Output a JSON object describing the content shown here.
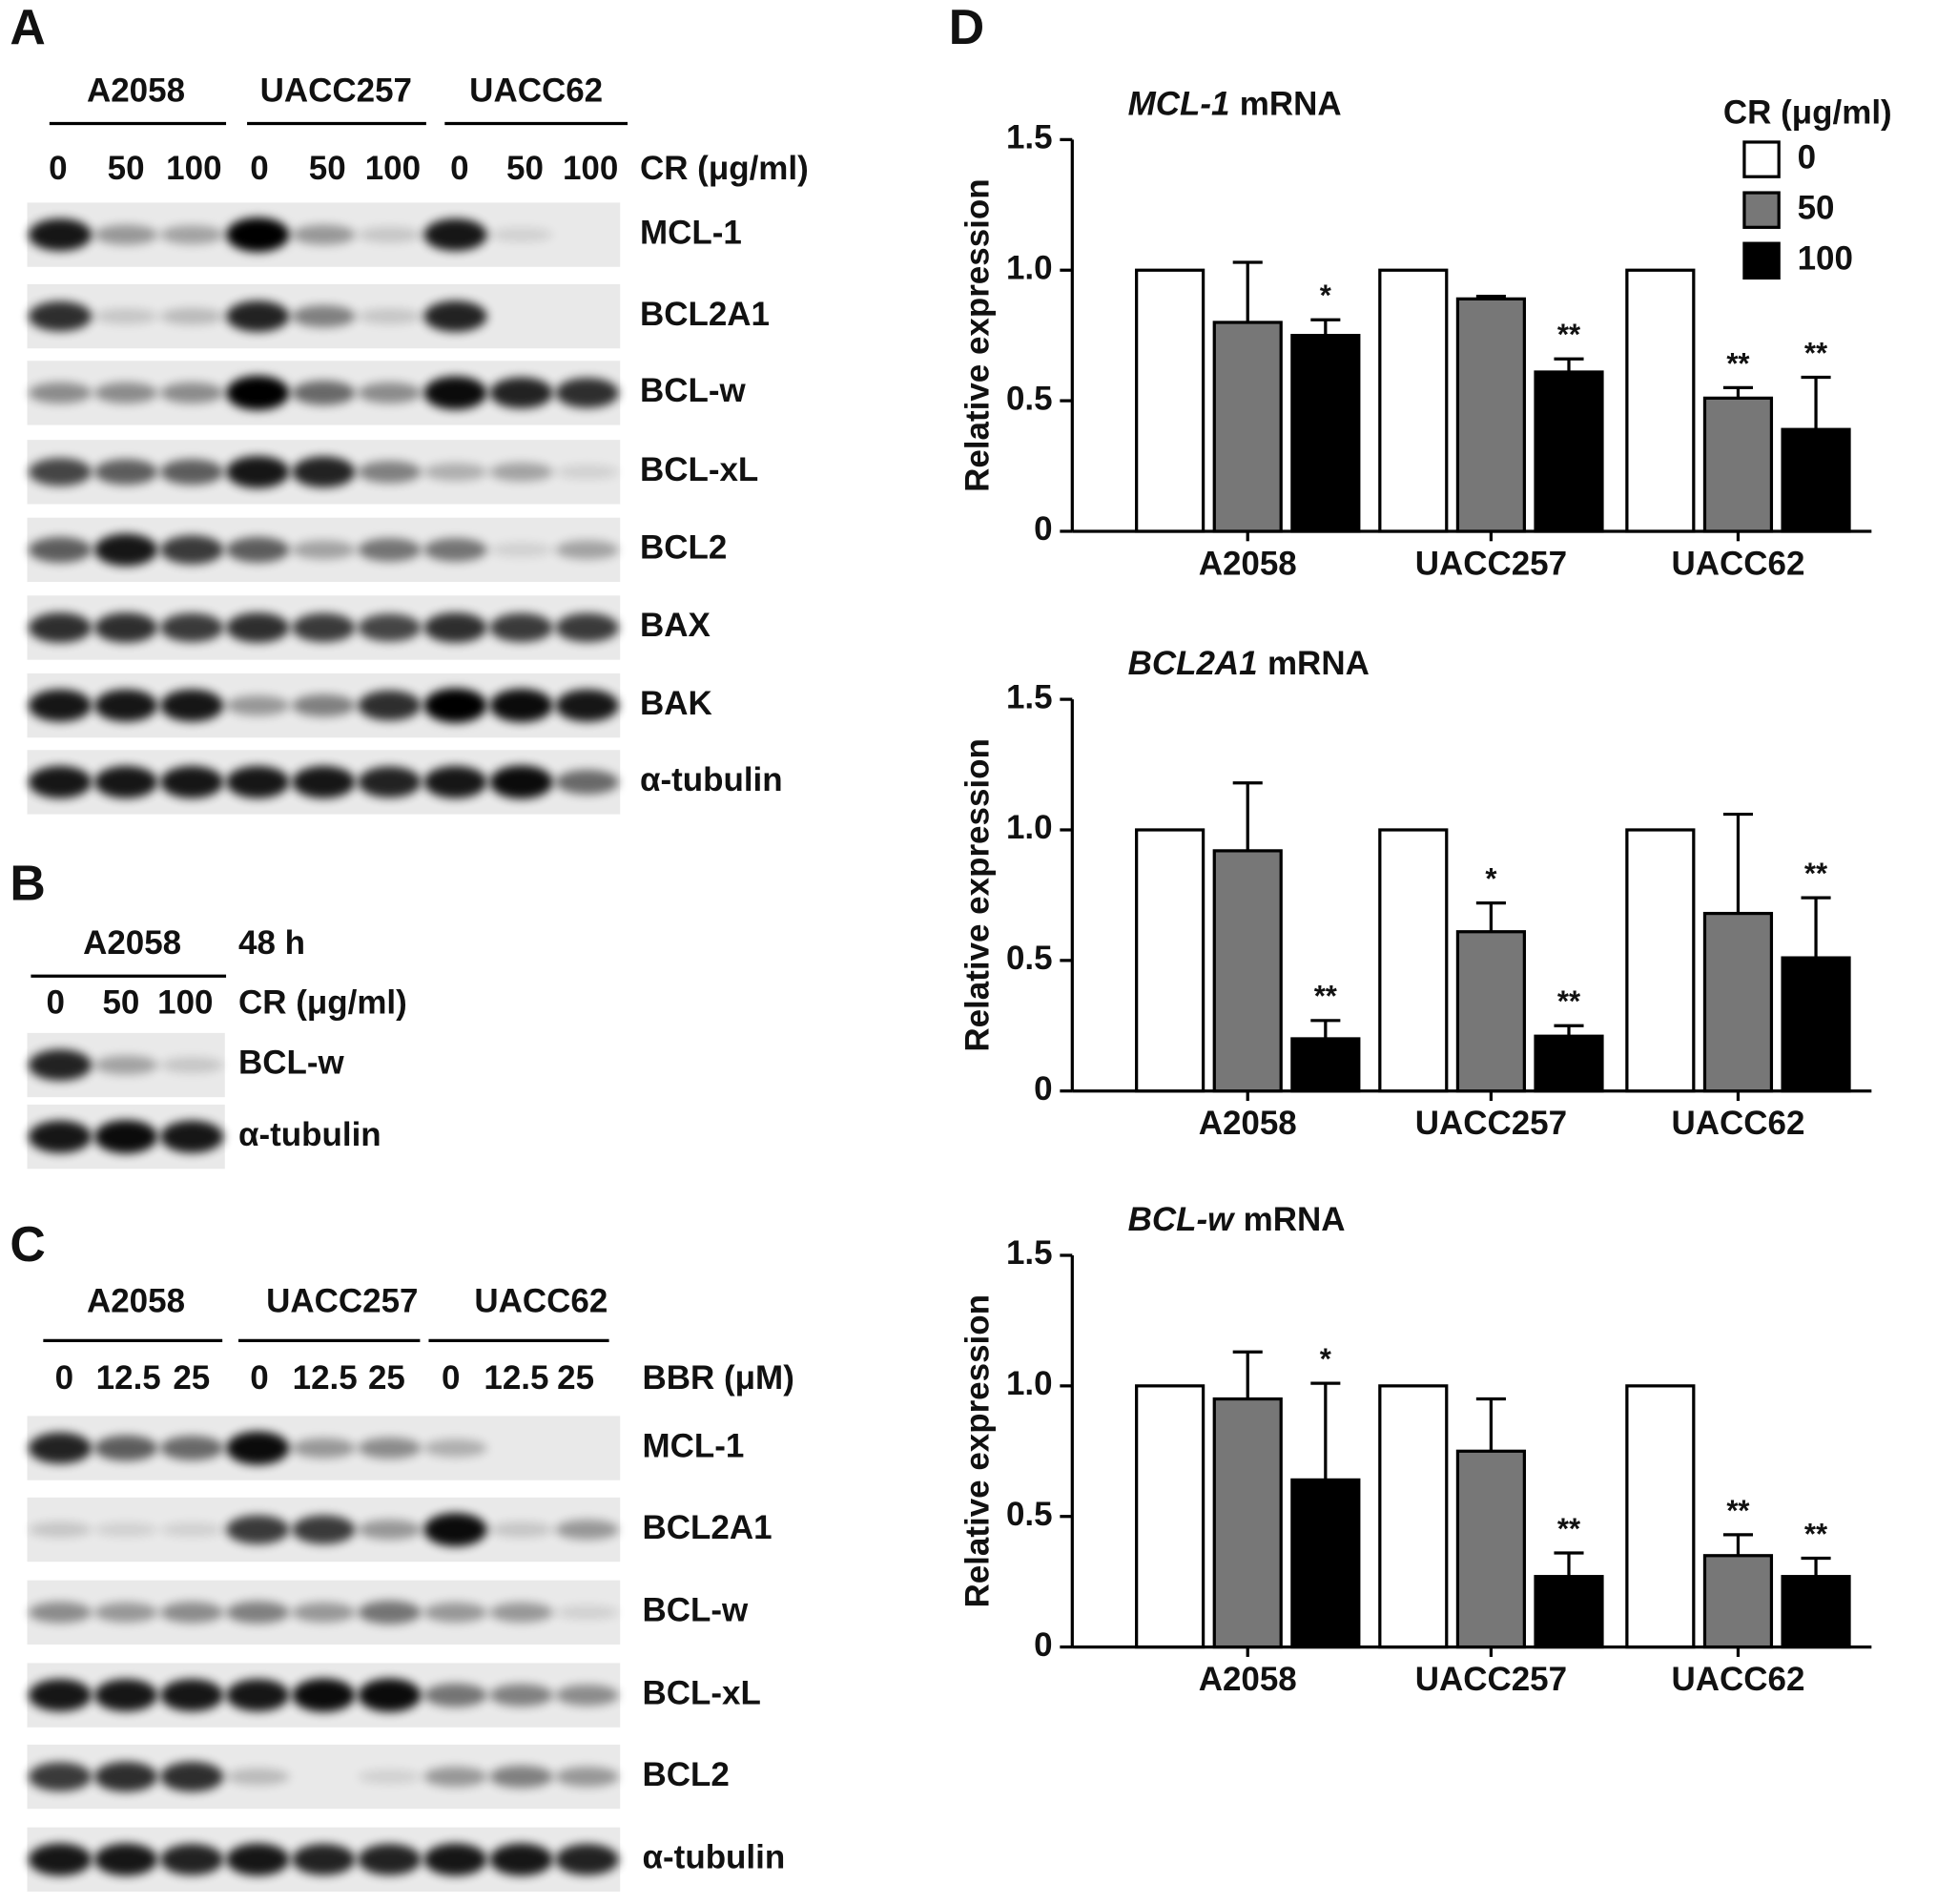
{
  "panel_letters": [
    "A",
    "B",
    "C",
    "D"
  ],
  "panels": [
    {
      "groups": [
        "A2058",
        "UACC257",
        "UACC62"
      ],
      "doses": [
        "0",
        "50",
        "100",
        "0",
        "50",
        "100",
        "0",
        "50",
        "100"
      ],
      "treatment": "CR (μg/ml)",
      "rows": [
        "MCL-1",
        "BCL2A1",
        "BCL-w",
        "BCL-xL",
        "BCL2",
        "BAX",
        "BAK",
        "α-tubulin"
      ]
    },
    {
      "groups": [
        "A2058"
      ],
      "time": "48 h",
      "doses": [
        "0",
        "50",
        "100"
      ],
      "treatment": "CR (μg/ml)",
      "rows": [
        "BCL-w",
        "α-tubulin"
      ]
    },
    {
      "groups": [
        "A2058",
        "UACC257",
        "UACC62"
      ],
      "doses": [
        "0",
        "12.5",
        "25",
        "0",
        "12.5",
        "25",
        "0",
        "12.5",
        "25"
      ],
      "treatment": "BBR (μM)",
      "rows": [
        "MCL-1",
        "BCL2A1",
        "BCL-w",
        "BCL-xL",
        "BCL2",
        "α-tubulin"
      ]
    }
  ],
  "chart_data": [
    {
      "type": "bar",
      "title": {
        "gene": "MCL-1",
        "text": "mRNA"
      },
      "ylabel": "Relative  expression",
      "categories": [
        "A2058",
        "UACC257",
        "UACC62"
      ],
      "ylim": [
        0,
        1.5
      ],
      "yticks": [
        0,
        0.5,
        {
          "value": 1,
          "label": "1.0"
        },
        1.5
      ],
      "legend_title": "CR (μg/ml)",
      "series": [
        {
          "name": "0",
          "color": "#ffffff",
          "values": [
            1,
            1,
            1
          ]
        },
        {
          "name": "50",
          "color": "#777777",
          "values": [
            0.8,
            0.89,
            0.51
          ],
          "errors": [
            0.23,
            0.01,
            0.04
          ],
          "significance": [
            null,
            null,
            "**"
          ]
        },
        {
          "name": "100",
          "color": "#000000",
          "values": [
            0.75,
            0.61,
            0.39
          ],
          "errors": [
            0.06,
            0.05,
            0.2
          ],
          "significance": [
            "*",
            "**",
            "**"
          ]
        }
      ]
    },
    {
      "type": "bar",
      "title": {
        "gene": "BCL2A1",
        "text": "mRNA"
      },
      "ylabel": "Relative  expression",
      "categories": [
        "A2058",
        "UACC257",
        "UACC62"
      ],
      "ylim": [
        0,
        1.5
      ],
      "yticks": [
        0,
        0.5,
        {
          "value": 1,
          "label": "1.0"
        },
        1.5
      ],
      "series": [
        {
          "color": "#ffffff",
          "values": [
            1,
            1,
            1
          ]
        },
        {
          "color": "#777777",
          "values": [
            0.92,
            0.61,
            0.68
          ],
          "errors": [
            0.26,
            0.11,
            0.38
          ],
          "significance": [
            null,
            "*",
            null
          ]
        },
        {
          "color": "#000000",
          "values": [
            0.2,
            0.21,
            0.51
          ],
          "errors": [
            0.07,
            0.04,
            0.23
          ],
          "significance": [
            "**",
            "**",
            "**"
          ]
        }
      ]
    },
    {
      "type": "bar",
      "title": {
        "gene": "BCL-w",
        "text": "mRNA"
      },
      "ylabel": "Relative  expression",
      "categories": [
        "A2058",
        "UACC257",
        "UACC62"
      ],
      "ylim": [
        0,
        1.5
      ],
      "yticks": [
        0,
        0.5,
        {
          "value": 1,
          "label": "1.0"
        },
        1.5
      ],
      "series": [
        {
          "color": "#ffffff",
          "values": [
            1,
            1,
            1
          ]
        },
        {
          "color": "#777777",
          "values": [
            0.95,
            0.75,
            0.35
          ],
          "errors": [
            0.18,
            0.2,
            0.08
          ],
          "significance": [
            null,
            null,
            "**"
          ]
        },
        {
          "color": "#000000",
          "values": [
            0.64,
            0.27,
            0.27
          ],
          "errors": [
            0.37,
            0.09,
            0.07
          ],
          "significance": [
            "*",
            "**",
            "**"
          ]
        }
      ]
    }
  ]
}
